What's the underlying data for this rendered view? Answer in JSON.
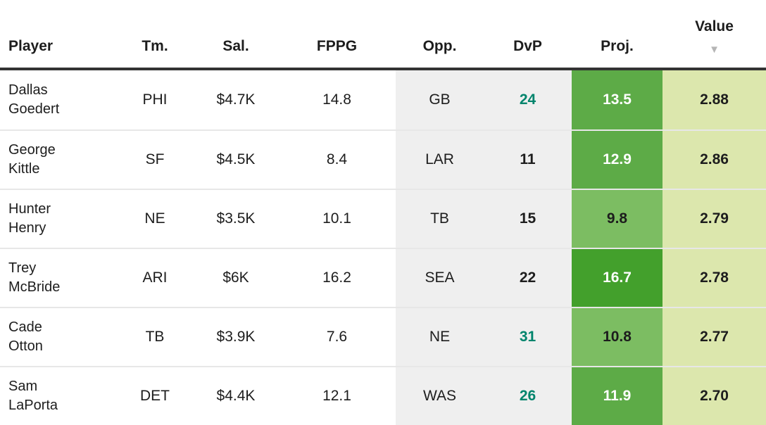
{
  "colors": {
    "text": "#1d1d1d",
    "header_border": "#333333",
    "muted_col_bg": "#efefef",
    "row_divider": "#e7e7e7",
    "dvp_good": "#00846c",
    "proj_dark": "#43a02c",
    "proj_medium": "#5dab47",
    "proj_light": "#7cbd62",
    "value_bg": "#dce7ad",
    "sort_arrow": "#b5b5b5"
  },
  "table": {
    "columns": [
      {
        "key": "player",
        "label": "Player"
      },
      {
        "key": "team",
        "label": "Tm."
      },
      {
        "key": "salary",
        "label": "Sal."
      },
      {
        "key": "fppg",
        "label": "FPPG"
      },
      {
        "key": "opp",
        "label": "Opp."
      },
      {
        "key": "dvp",
        "label": "DvP"
      },
      {
        "key": "proj",
        "label": "Proj."
      },
      {
        "key": "value",
        "label": "Value"
      }
    ],
    "sort_indicator": {
      "column": "Value",
      "direction": "desc",
      "glyph": "▼"
    },
    "rows": [
      {
        "player_line1": "Dallas",
        "player_line2": "Goedert",
        "team": "PHI",
        "salary": "$4.7K",
        "fppg": "14.8",
        "opp": "GB",
        "dvp": "24",
        "dvp_teal": true,
        "proj": "13.5",
        "proj_shade": "medium",
        "value": "2.88"
      },
      {
        "player_line1": "George",
        "player_line2": "Kittle",
        "team": "SF",
        "salary": "$4.5K",
        "fppg": "8.4",
        "opp": "LAR",
        "dvp": "11",
        "dvp_teal": false,
        "proj": "12.9",
        "proj_shade": "medium",
        "value": "2.86"
      },
      {
        "player_line1": "Hunter",
        "player_line2": "Henry",
        "team": "NE",
        "salary": "$3.5K",
        "fppg": "10.1",
        "opp": "TB",
        "dvp": "15",
        "dvp_teal": false,
        "proj": "9.8",
        "proj_shade": "light",
        "value": "2.79"
      },
      {
        "player_line1": "Trey",
        "player_line2": "McBride",
        "team": "ARI",
        "salary": "$6K",
        "fppg": "16.2",
        "opp": "SEA",
        "dvp": "22",
        "dvp_teal": false,
        "proj": "16.7",
        "proj_shade": "dark",
        "value": "2.78"
      },
      {
        "player_line1": "Cade",
        "player_line2": "Otton",
        "team": "TB",
        "salary": "$3.9K",
        "fppg": "7.6",
        "opp": "NE",
        "dvp": "31",
        "dvp_teal": true,
        "proj": "10.8",
        "proj_shade": "light",
        "value": "2.77"
      },
      {
        "player_line1": "Sam",
        "player_line2": "LaPorta",
        "team": "DET",
        "salary": "$4.4K",
        "fppg": "12.1",
        "opp": "WAS",
        "dvp": "26",
        "dvp_teal": true,
        "proj": "11.9",
        "proj_shade": "medium",
        "value": "2.70"
      }
    ]
  }
}
